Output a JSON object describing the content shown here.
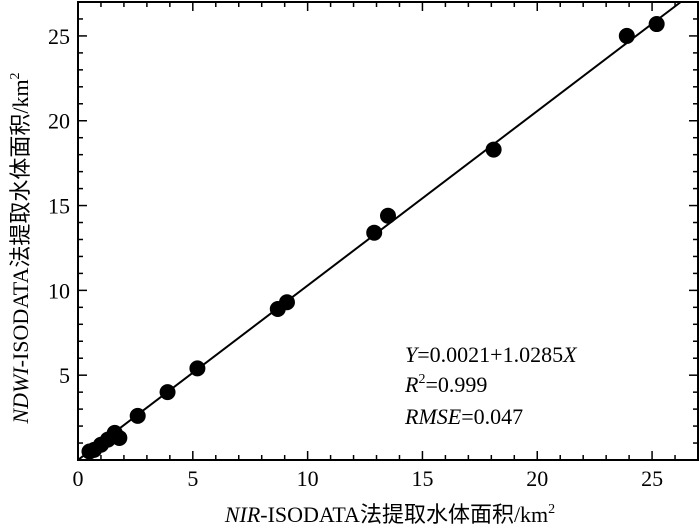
{
  "chart_data": {
    "type": "scatter",
    "xlabel_italic": "NIR",
    "xlabel_rest": "-ISODATA法提取水体面积/km",
    "ylabel_italic": "NDWI",
    "ylabel_rest": "-ISODATA法提取水体面积/km",
    "unit_superscript": "2",
    "xlim": [
      0,
      27
    ],
    "ylim": [
      0,
      27
    ],
    "xticks": [
      0,
      5,
      10,
      15,
      20,
      25
    ],
    "yticks": [
      5,
      10,
      15,
      20,
      25
    ],
    "xtick_labels": [
      "0",
      "5",
      "10",
      "15",
      "20",
      "25"
    ],
    "ytick_labels": [
      "5",
      "10",
      "15",
      "20",
      "25"
    ],
    "grid": false,
    "points": [
      {
        "x": 0.5,
        "y": 0.5
      },
      {
        "x": 0.7,
        "y": 0.6
      },
      {
        "x": 1.0,
        "y": 0.9
      },
      {
        "x": 1.3,
        "y": 1.2
      },
      {
        "x": 1.6,
        "y": 1.6
      },
      {
        "x": 1.8,
        "y": 1.3
      },
      {
        "x": 2.6,
        "y": 2.6
      },
      {
        "x": 3.9,
        "y": 4.0
      },
      {
        "x": 5.2,
        "y": 5.4
      },
      {
        "x": 8.7,
        "y": 8.9
      },
      {
        "x": 9.1,
        "y": 9.3
      },
      {
        "x": 12.9,
        "y": 13.4
      },
      {
        "x": 13.5,
        "y": 14.4
      },
      {
        "x": 18.1,
        "y": 18.3
      },
      {
        "x": 23.9,
        "y": 25.0
      },
      {
        "x": 25.2,
        "y": 25.7
      }
    ],
    "fit": {
      "intercept": 0.0021,
      "slope": 1.0285
    },
    "annotation": {
      "line1_var": "Y",
      "line1_text": "=0.0021+1.0285",
      "line1_var2": "X",
      "line2_var": "R",
      "line2_sup": "2",
      "line2_text": "=0.999",
      "line3_var": "RMSE",
      "line3_text": "=0.047"
    }
  }
}
